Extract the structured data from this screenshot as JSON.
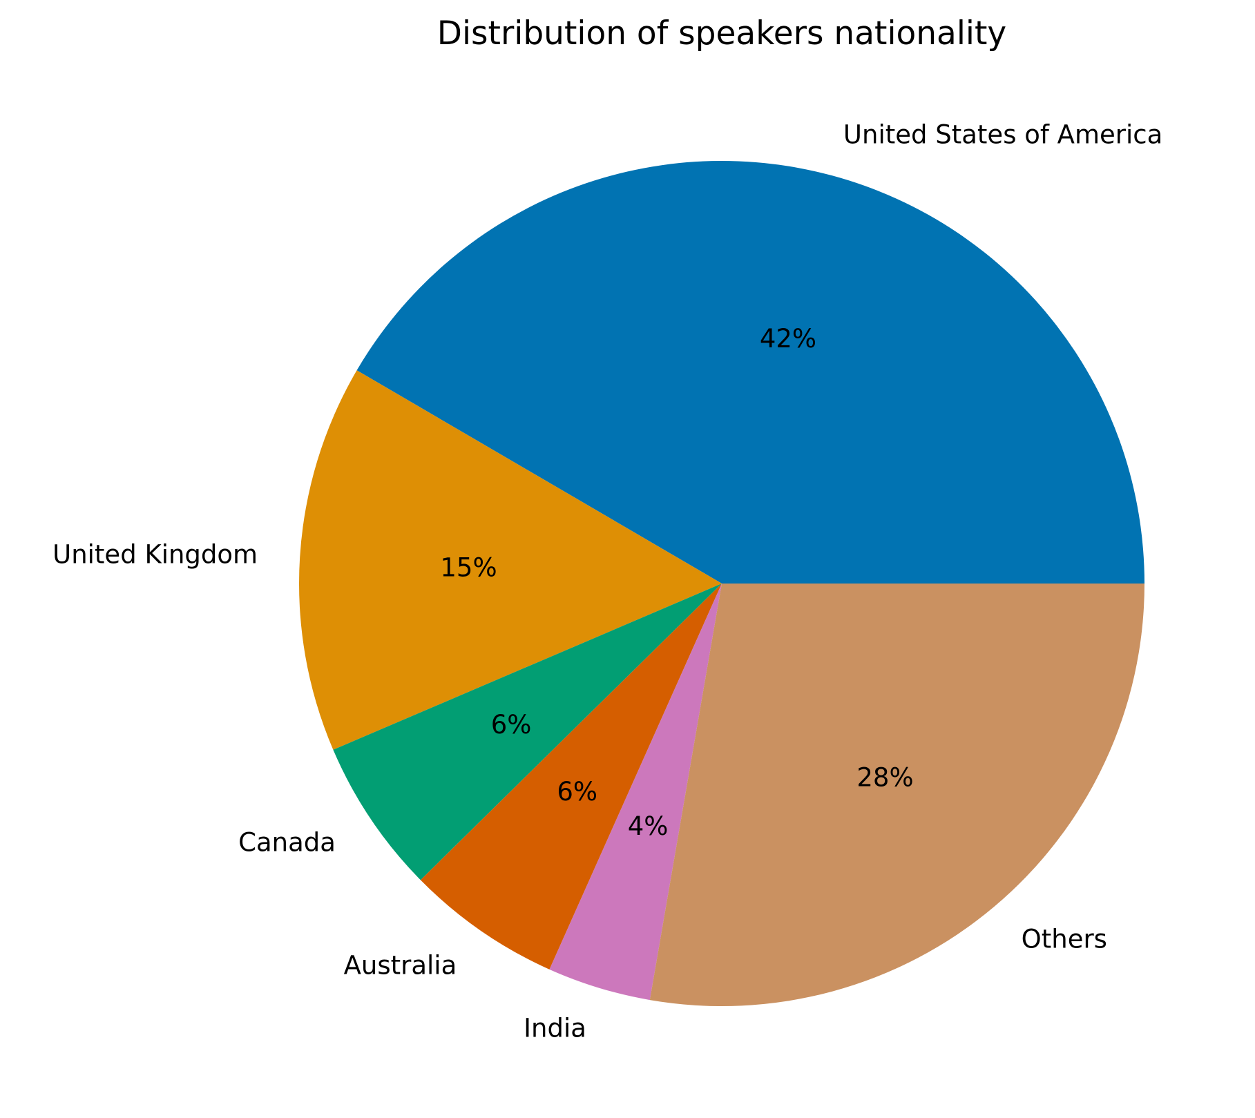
{
  "chart_data": {
    "type": "pie",
    "title": "Distribution of speakers nationality",
    "start_angle_deg": 0,
    "direction": "counterclockwise",
    "slices": [
      {
        "label": "United States of America",
        "value": 42,
        "pct_label": "42%",
        "color": "#0173b2"
      },
      {
        "label": "United Kingdom",
        "value": 15,
        "pct_label": "15%",
        "color": "#de8f05"
      },
      {
        "label": "Canada",
        "value": 6,
        "pct_label": "6%",
        "color": "#029e73"
      },
      {
        "label": "Australia",
        "value": 6,
        "pct_label": "6%",
        "color": "#d55e00"
      },
      {
        "label": "India",
        "value": 4,
        "pct_label": "4%",
        "color": "#cc78bc"
      },
      {
        "label": "Others",
        "value": 28,
        "pct_label": "28%",
        "color": "#ca9161"
      }
    ]
  }
}
